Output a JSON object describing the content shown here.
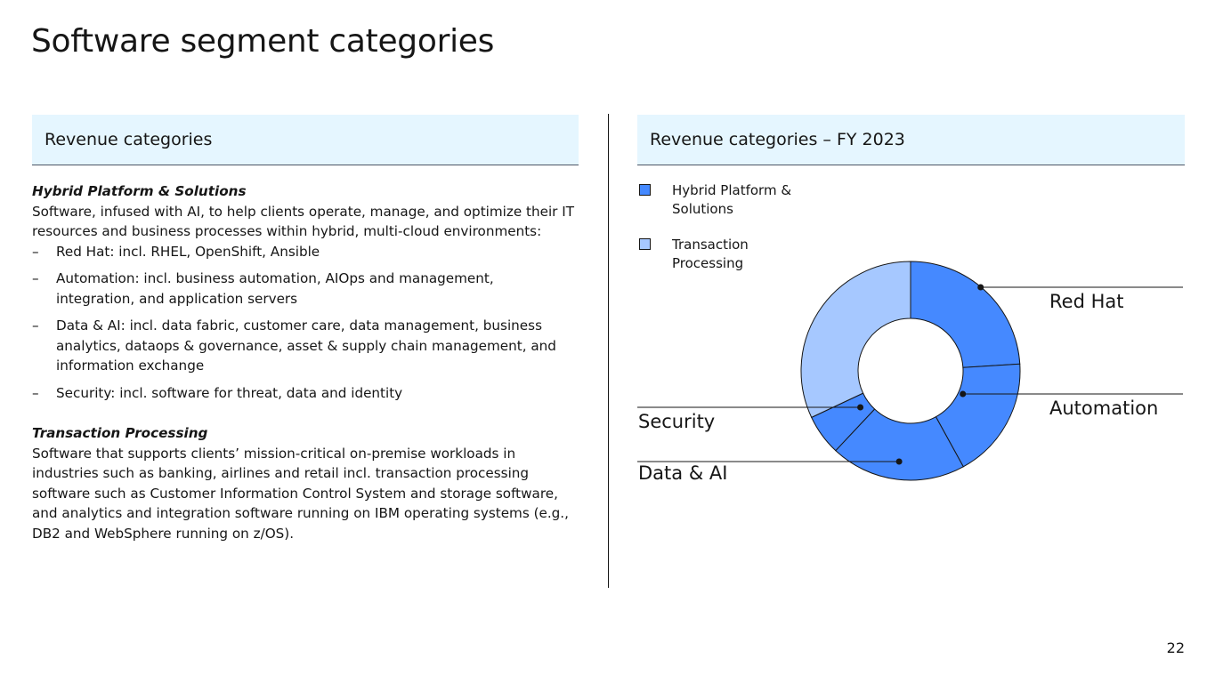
{
  "page": {
    "title": "Software segment categories",
    "page_number": "22"
  },
  "left": {
    "header": "Revenue categories",
    "hybrid": {
      "title": "Hybrid Platform & Solutions",
      "description": "Software, infused with AI, to help clients operate, manage, and optimize their IT resources and business processes within hybrid, multi-cloud environments:",
      "bullets": [
        "Red Hat: incl. RHEL, OpenShift, Ansible",
        "Automation: incl. business automation, AIOps and management, integration, and application servers",
        "Data & AI: incl. data fabric, customer care, data management, business analytics, dataops & governance, asset & supply chain management, and information exchange",
        "Security: incl. software for threat, data and identity"
      ]
    },
    "transaction": {
      "title": "Transaction Processing",
      "description": "Software that supports clients’ mission-critical on-premise workloads in industries such as banking, airlines and retail incl. transaction processing software such as Customer Information Control System and storage software, and analytics and integration software running on IBM operating systems (e.g., DB2 and WebSphere running on z/OS)."
    }
  },
  "right": {
    "header": "Revenue categories – FY 2023",
    "legend": [
      {
        "label": "Hybrid Platform & Solutions",
        "color": "#4589ff"
      },
      {
        "label": "Transaction Processing",
        "color": "#a6c8ff"
      }
    ]
  },
  "chart_data": {
    "type": "pie",
    "style": "donut",
    "title": "Revenue categories – FY 2023",
    "unit": "percent of software revenue (approximate)",
    "slices": [
      {
        "name": "Red Hat",
        "group": "Hybrid Platform & Solutions",
        "value": 24,
        "labeled": true
      },
      {
        "name": "Automation",
        "group": "Hybrid Platform & Solutions",
        "value": 18,
        "labeled": true
      },
      {
        "name": "Data & AI",
        "group": "Hybrid Platform & Solutions",
        "value": 20,
        "labeled": true
      },
      {
        "name": "Security",
        "group": "Hybrid Platform & Solutions",
        "value": 6,
        "labeled": true
      },
      {
        "name": "Transaction Processing",
        "group": "Transaction Processing",
        "value": 32,
        "labeled": false
      }
    ],
    "colors": {
      "Hybrid Platform & Solutions": "#4589ff",
      "Transaction Processing": "#a6c8ff"
    }
  }
}
